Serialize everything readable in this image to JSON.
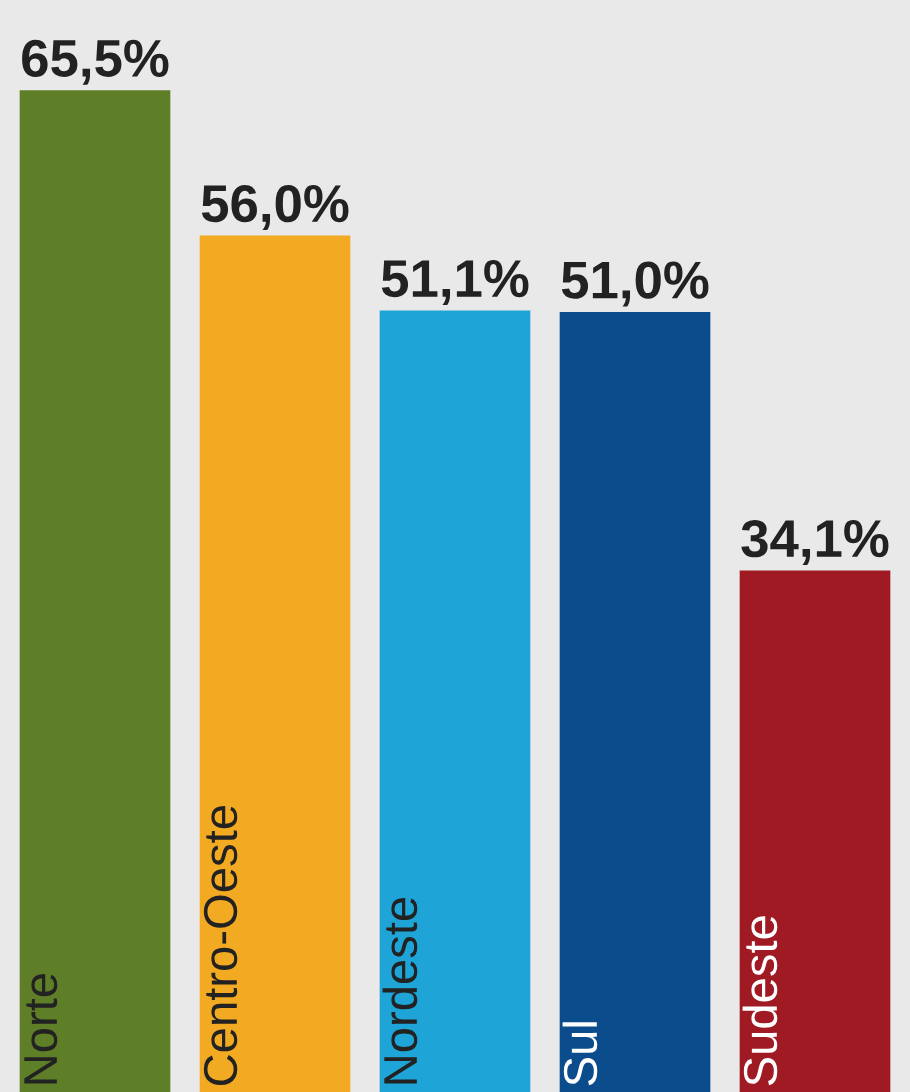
{
  "chart_data": {
    "type": "bar",
    "categories": [
      "Norte",
      "Centro-Oeste",
      "Nordeste",
      "Sul",
      "Sudeste"
    ],
    "values": [
      65.5,
      56.0,
      51.1,
      51.0,
      34.1
    ],
    "colors": [
      "#5e7e28",
      "#f2aa22",
      "#1ea4d6",
      "#0a4c8c",
      "#a01a24"
    ],
    "value_labels": [
      "65,5%",
      "56,0%",
      "51,1%",
      "51,0%",
      "34,1%"
    ],
    "ylim": [
      0,
      71.4
    ]
  }
}
